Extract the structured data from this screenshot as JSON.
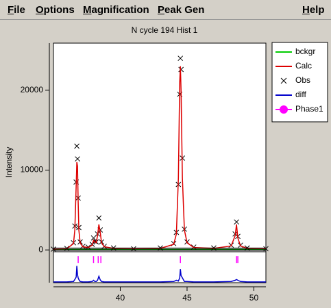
{
  "menu": [
    "File",
    "Options",
    "Magnification",
    "Peak Gen",
    "Help"
  ],
  "chart_data": {
    "type": "line",
    "title": "N cycle 194 Hist 1",
    "y_label": "Intensity",
    "x": [
      35.0,
      36.0,
      36.5,
      36.6,
      36.7,
      36.75,
      36.8,
      36.85,
      36.9,
      37.0,
      37.2,
      37.6,
      37.9,
      38.0,
      38.1,
      38.2,
      38.3,
      38.4,
      38.5,
      38.6,
      38.8,
      39.5,
      41.0,
      43.0,
      44.0,
      44.2,
      44.35,
      44.45,
      44.5,
      44.55,
      44.65,
      44.8,
      45.0,
      45.5,
      47.0,
      48.3,
      48.6,
      48.7,
      48.8,
      49.0,
      49.5,
      50.9
    ],
    "series": [
      {
        "name": "bckgr",
        "color": "#00cc00",
        "values": [
          80,
          80,
          80,
          80,
          80,
          80,
          80,
          80,
          80,
          80,
          80,
          80,
          80,
          80,
          80,
          80,
          80,
          80,
          80,
          80,
          80,
          80,
          80,
          80,
          80,
          80,
          80,
          80,
          80,
          80,
          80,
          80,
          80,
          80,
          80,
          80,
          80,
          80,
          80,
          80,
          80,
          80
        ]
      },
      {
        "name": "Calc",
        "color": "#dd0000",
        "values": [
          100,
          150,
          800,
          2500,
          8000,
          11000,
          10500,
          6000,
          2500,
          900,
          400,
          300,
          600,
          1200,
          1000,
          900,
          1800,
          3200,
          2200,
          900,
          400,
          200,
          150,
          200,
          700,
          2000,
          9000,
          21000,
          23000,
          20000,
          9000,
          2500,
          900,
          300,
          200,
          500,
          1800,
          3200,
          1500,
          500,
          200,
          150
        ]
      },
      {
        "name": "Obs",
        "color": "#000000",
        "marker": "x",
        "values": [
          100,
          200,
          900,
          3000,
          8500,
          13000,
          11400,
          6500,
          2800,
          1000,
          450,
          350,
          700,
          1500,
          1100,
          1000,
          2000,
          4000,
          2500,
          1000,
          450,
          250,
          150,
          250,
          800,
          2200,
          8200,
          19500,
          24000,
          22600,
          11500,
          2600,
          1000,
          350,
          250,
          600,
          2000,
          3500,
          1700,
          600,
          250,
          150
        ]
      },
      {
        "name": "diff",
        "color": "#0000cc",
        "values": [
          -4000,
          -4000,
          -3950,
          -3700,
          -3400,
          -2000,
          -3100,
          -3500,
          -3700,
          -3950,
          -4000,
          -4000,
          -3950,
          -3800,
          -3950,
          -3950,
          -3800,
          -3300,
          -3750,
          -3950,
          -4000,
          -4000,
          -4000,
          -4000,
          -3950,
          -3800,
          -3900,
          -3500,
          -2400,
          -3200,
          -3500,
          -3950,
          -3950,
          -4000,
          -4000,
          -3950,
          -3800,
          -3700,
          -3800,
          -3950,
          -4000,
          -4000
        ]
      },
      {
        "name": "Phase1",
        "color": "#ff00ff",
        "marker": "tick",
        "x": [
          36.85,
          38.0,
          38.35,
          38.55,
          44.5,
          48.7,
          48.8
        ],
        "values": [
          -1200,
          -1200,
          -1200,
          -1200,
          -1200,
          -1200,
          -1200
        ]
      }
    ],
    "xlim": [
      35.0,
      50.9
    ],
    "ylim": [
      -4100,
      25900
    ],
    "xticks": [
      40,
      45,
      50
    ],
    "yticks": [
      0,
      10000,
      20000
    ]
  }
}
